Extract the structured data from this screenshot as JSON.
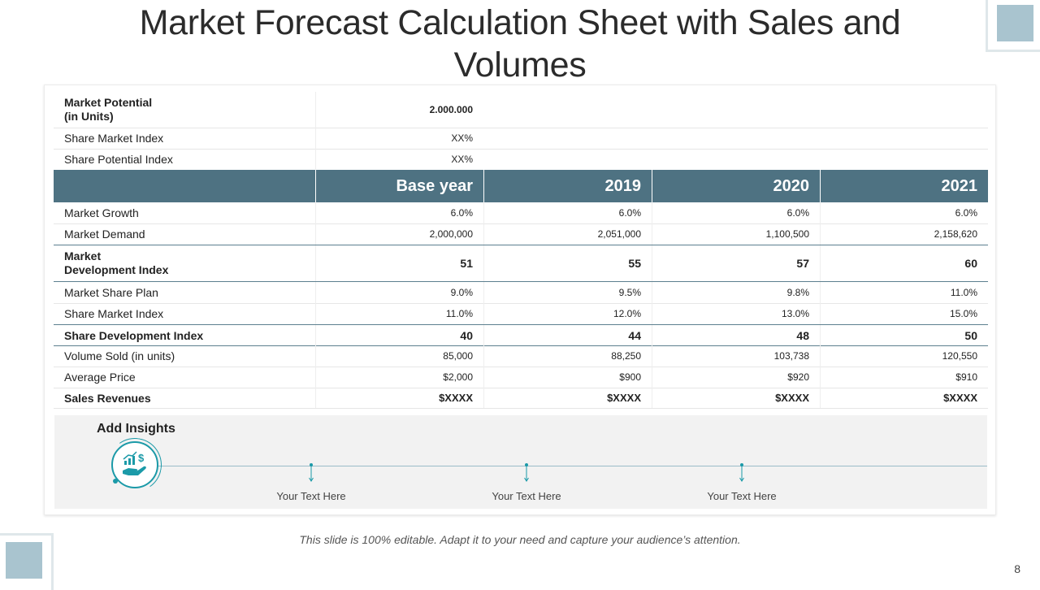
{
  "title": "Market Forecast Calculation Sheet with Sales and Volumes",
  "top_rows": [
    {
      "label": "Market Potential\n(in Units)",
      "value": "2.000.000"
    },
    {
      "label": "Share Market Index",
      "value": "XX%"
    },
    {
      "label": "Share Potential Index",
      "value": "XX%"
    }
  ],
  "header": [
    "Base year",
    "2019",
    "2020",
    "2021"
  ],
  "rows": [
    {
      "label": "Market Growth",
      "values": [
        "6.0%",
        "6.0%",
        "6.0%",
        "6.0%"
      ]
    },
    {
      "label": "Market Demand",
      "values": [
        "2,000,000",
        "2,051,000",
        "1,100,500",
        "2,158,620"
      ]
    },
    {
      "label": "Market\nDevelopment Index",
      "values": [
        "51",
        "55",
        "57",
        "60"
      ]
    },
    {
      "label": "Market Share Plan",
      "values": [
        "9.0%",
        "9.5%",
        "9.8%",
        "11.0%"
      ]
    },
    {
      "label": "Share Market Index",
      "values": [
        "11.0%",
        "12.0%",
        "13.0%",
        "15.0%"
      ]
    },
    {
      "label": "Share Development Index",
      "values": [
        "40",
        "44",
        "48",
        "50"
      ]
    },
    {
      "label": "Volume Sold (in units)",
      "values": [
        "85,000",
        "88,250",
        "103,738",
        "120,550"
      ]
    },
    {
      "label": "Average Price",
      "values": [
        "$2,000",
        "$900",
        "$920",
        "$910"
      ]
    },
    {
      "label": "Sales Revenues",
      "values": [
        "$XXXX",
        "$XXXX",
        "$XXXX",
        "$XXXX"
      ]
    }
  ],
  "insights": {
    "title": "Add Insights",
    "items": [
      "Your Text Here",
      "Your Text Here",
      "Your Text Here"
    ]
  },
  "footnote": "This slide is 100% editable. Adapt it to your need and capture your audience’s attention.",
  "page_number": "8",
  "colors": {
    "header": "#4e7282",
    "accent": "#1b9aa8",
    "deco": "#a9c4cf"
  }
}
